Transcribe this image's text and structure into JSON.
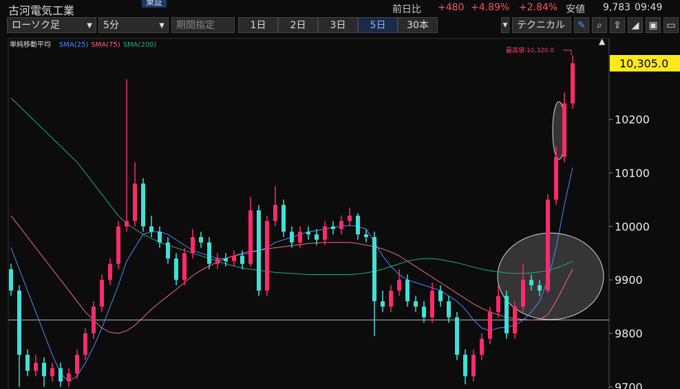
{
  "header": {
    "company": "古河電気工業",
    "market": "東証",
    "change_label": "前日比",
    "change": "+480",
    "change_pct": "+4.89%",
    "change_pct2": "+2.84%",
    "low_label": "安値",
    "low": "9,783",
    "time": "09:49"
  },
  "toolbar": {
    "chart_type": "ローソク足",
    "interval": "5分",
    "period": "期間指定",
    "ranges": [
      "1日",
      "2日",
      "3日",
      "5日",
      "30本"
    ],
    "selected_range": 3,
    "technical": "テクニカル"
  },
  "chart_data": {
    "type": "candlestick",
    "legend_title": "単純移動平均",
    "annotation": "最高値:10,320.0",
    "up_color": "#ff2a6d",
    "down_color": "#3fe0d8",
    "open": [
      9920,
      9880,
      9760,
      9730,
      9745,
      9720,
      9735,
      9710,
      9725,
      9760,
      9800,
      9850,
      9900,
      9930,
      10000,
      10010,
      10080,
      10000,
      9990,
      9970,
      9940,
      9900,
      9950,
      9980,
      9970,
      9930,
      9940,
      9935,
      9945,
      9930,
      10030,
      9880,
      10010,
      10040,
      9990,
      9970,
      9990,
      9985,
      9975,
      10000,
      9995,
      10010,
      10020,
      9985,
      9980,
      9860,
      9850,
      9880,
      9900,
      9860,
      9850,
      9830,
      9880,
      9860,
      9830,
      9760,
      9720,
      9760,
      9790,
      9840,
      9870,
      9800,
      9850,
      9900,
      9890,
      9880,
      10050,
      10130,
      10230
    ],
    "high": [
      9930,
      9890,
      9770,
      9760,
      9755,
      9745,
      9745,
      9735,
      9770,
      9810,
      9860,
      9910,
      9940,
      10010,
      10275,
      10120,
      10090,
      10020,
      10000,
      9980,
      9950,
      9960,
      9995,
      9990,
      9980,
      9950,
      9950,
      9955,
      9955,
      10055,
      10040,
      10020,
      10075,
      10050,
      10000,
      10000,
      10000,
      9995,
      10010,
      10010,
      10020,
      10035,
      10025,
      9995,
      9990,
      9880,
      9890,
      9920,
      9910,
      9870,
      9860,
      9895,
      9890,
      9870,
      9840,
      9770,
      9770,
      9800,
      9850,
      9890,
      9880,
      9860,
      9930,
      9910,
      9900,
      10060,
      10150,
      10250,
      10320
    ],
    "low": [
      9870,
      9700,
      9720,
      9720,
      9700,
      9710,
      9700,
      9700,
      9715,
      9750,
      9790,
      9840,
      9890,
      9920,
      9990,
      10000,
      9990,
      9980,
      9960,
      9930,
      9890,
      9890,
      9940,
      9960,
      9920,
      9920,
      9925,
      9925,
      9920,
      9925,
      9870,
      9870,
      10000,
      9980,
      9960,
      9960,
      9975,
      9965,
      9965,
      9985,
      9985,
      10000,
      9975,
      9970,
      9795,
      9840,
      9840,
      9870,
      9850,
      9840,
      9820,
      9820,
      9850,
      9820,
      9750,
      9705,
      9710,
      9750,
      9780,
      9830,
      9790,
      9790,
      9840,
      9880,
      9870,
      9875,
      10040,
      10120,
      10220
    ],
    "close": [
      9880,
      9760,
      9730,
      9745,
      9720,
      9735,
      9710,
      9725,
      9760,
      9800,
      9850,
      9900,
      9930,
      10000,
      10010,
      10080,
      10000,
      9990,
      9970,
      9940,
      9900,
      9950,
      9980,
      9970,
      9930,
      9940,
      9935,
      9945,
      9930,
      10030,
      9880,
      10010,
      10040,
      9990,
      9970,
      9990,
      9985,
      9975,
      10000,
      9995,
      10010,
      10020,
      9985,
      9980,
      9860,
      9850,
      9880,
      9900,
      9860,
      9850,
      9830,
      9880,
      9860,
      9830,
      9760,
      9720,
      9760,
      9790,
      9840,
      9870,
      9800,
      9850,
      9900,
      9890,
      9880,
      10050,
      10130,
      10230,
      10305
    ],
    "series": [
      {
        "name": "SMA(25)",
        "color": "#4f8cff",
        "values": [
          9960,
          9920,
          9880,
          9840,
          9800,
          9760,
          9725,
          9710,
          9720,
          9745,
          9775,
          9810,
          9850,
          9890,
          9935,
          9960,
          9985,
          9990,
          9990,
          9985,
          9975,
          9965,
          9955,
          9950,
          9945,
          9940,
          9940,
          9945,
          9948,
          9950,
          9955,
          9960,
          9970,
          9975,
          9980,
          9985,
          9990,
          9992,
          9995,
          9998,
          10000,
          10002,
          10000,
          9995,
          9970,
          9945,
          9925,
          9910,
          9900,
          9895,
          9890,
          9885,
          9880,
          9870,
          9860,
          9845,
          9825,
          9810,
          9805,
          9810,
          9812,
          9815,
          9825,
          9840,
          9860,
          9900,
          9960,
          10040,
          10110
        ]
      },
      {
        "name": "SMA(75)",
        "color": "#f06a8c",
        "values": [
          10020,
          10000,
          9980,
          9960,
          9940,
          9920,
          9900,
          9880,
          9860,
          9840,
          9825,
          9810,
          9802,
          9800,
          9805,
          9815,
          9830,
          9845,
          9858,
          9870,
          9882,
          9895,
          9908,
          9918,
          9926,
          9934,
          9940,
          9945,
          9950,
          9953,
          9955,
          9958,
          9960,
          9962,
          9964,
          9966,
          9968,
          9969,
          9970,
          9970,
          9970,
          9970,
          9968,
          9965,
          9962,
          9958,
          9952,
          9945,
          9935,
          9925,
          9915,
          9905,
          9895,
          9885,
          9875,
          9865,
          9855,
          9847,
          9840,
          9835,
          9830,
          9828,
          9826,
          9825,
          9826,
          9835,
          9860,
          9890,
          9920
        ]
      },
      {
        "name": "SMA(200)",
        "color": "#1fae7a",
        "values": [
          10240,
          10225,
          10210,
          10195,
          10180,
          10165,
          10150,
          10135,
          10120,
          10100,
          10080,
          10060,
          10040,
          10020,
          10005,
          9995,
          9985,
          9978,
          9970,
          9965,
          9960,
          9955,
          9950,
          9945,
          9940,
          9935,
          9930,
          9926,
          9922,
          9920,
          9918,
          9916,
          9914,
          9913,
          9912,
          9911,
          9910,
          9910,
          9910,
          9910,
          9910,
          9910,
          9911,
          9913,
          9916,
          9920,
          9925,
          9930,
          9935,
          9938,
          9940,
          9940,
          9938,
          9935,
          9932,
          9928,
          9924,
          9920,
          9917,
          9915,
          9913,
          9912,
          9912,
          9913,
          9915,
          9918,
          9922,
          9928,
          9935
        ]
      }
    ],
    "reference_line": 9825,
    "last_price": {
      "value": 10305,
      "label": "10,305.0"
    },
    "ylim": [
      9696,
      10350
    ],
    "yticks": [
      9700,
      9800,
      9900,
      10000,
      10100,
      10200
    ]
  }
}
